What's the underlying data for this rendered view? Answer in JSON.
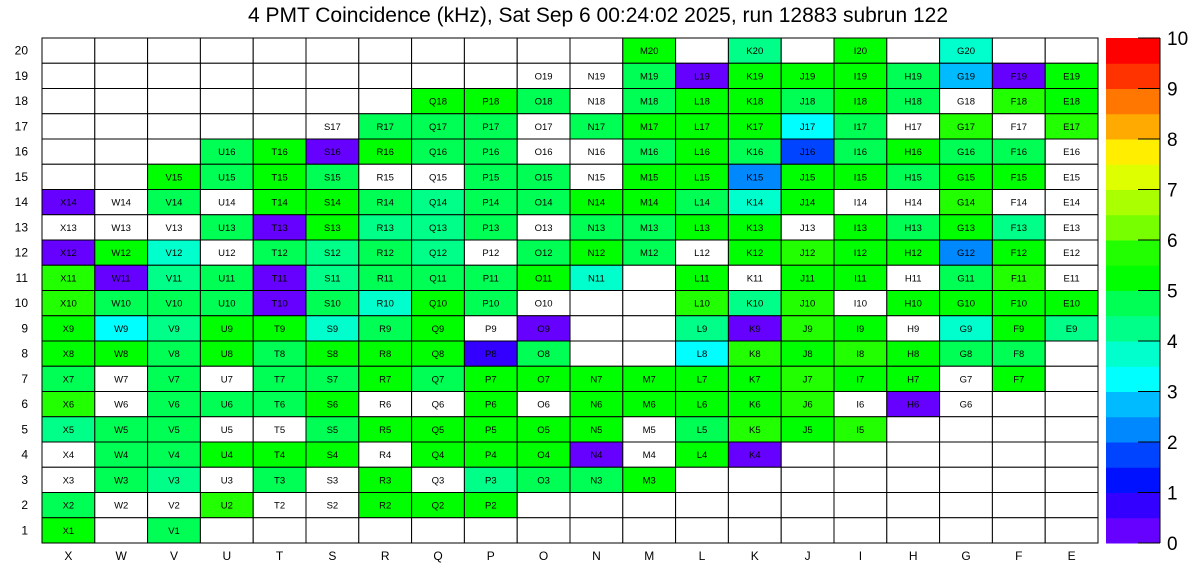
{
  "chart_data": {
    "type": "heatmap",
    "title": "4 PMT Coincidence (kHz), Sat Sep  6 00:24:02 2025, run 12883 subrun 122",
    "x": [
      "X",
      "W",
      "V",
      "U",
      "T",
      "S",
      "R",
      "Q",
      "P",
      "O",
      "N",
      "M",
      "L",
      "K",
      "J",
      "I",
      "H",
      "G",
      "F",
      "E"
    ],
    "y": [
      "20",
      "19",
      "18",
      "17",
      "16",
      "15",
      "14",
      "13",
      "12",
      "11",
      "10",
      "9",
      "8",
      "7",
      "6",
      "5",
      "4",
      "3",
      "2",
      "1"
    ],
    "zlim": [
      0,
      10
    ],
    "colorbar_ticks": [
      "0",
      "1",
      "2",
      "3",
      "4",
      "5",
      "6",
      "7",
      "8",
      "9",
      "10"
    ],
    "palette": [
      "#6600ff",
      "#3300ff",
      "#0011ff",
      "#0044ff",
      "#0088ff",
      "#00bbff",
      "#00ffff",
      "#00ffcc",
      "#00ff88",
      "#00ff55",
      "#00ff00",
      "#22ff00",
      "#77ff00",
      "#aaff00",
      "#ddff00",
      "#ffee00",
      "#ffaa00",
      "#ff7700",
      "#ff3300",
      "#ff0000"
    ],
    "z": [
      [
        null,
        null,
        null,
        null,
        null,
        null,
        null,
        null,
        null,
        null,
        null,
        5.3,
        null,
        4.3,
        null,
        5.3,
        null,
        3.8,
        null,
        null
      ],
      [
        null,
        null,
        null,
        null,
        null,
        null,
        null,
        null,
        null,
        0,
        0,
        4.8,
        0.3,
        5.3,
        5.3,
        5.3,
        4.8,
        2.8,
        0.3,
        5.3
      ],
      [
        null,
        null,
        null,
        null,
        null,
        null,
        null,
        5.3,
        5.3,
        4.8,
        0,
        4.8,
        5.3,
        5.3,
        4.8,
        5.3,
        4.8,
        0,
        5.8,
        5.3
      ],
      [
        null,
        null,
        null,
        null,
        null,
        0,
        4.8,
        4.8,
        4.8,
        0,
        4.8,
        5.3,
        5.3,
        5.3,
        3.3,
        4.8,
        0,
        5.8,
        0,
        5.8
      ],
      [
        null,
        null,
        null,
        4.8,
        5.3,
        0.3,
        5.3,
        4.8,
        4.8,
        0,
        0,
        4.8,
        5.3,
        4.8,
        1.8,
        4.8,
        5.3,
        4.8,
        4.8,
        0
      ],
      [
        null,
        null,
        5.3,
        4.8,
        5.3,
        4.8,
        0,
        0,
        4.8,
        4.8,
        0,
        5.3,
        5.3,
        2.3,
        5.3,
        5.3,
        4.8,
        5.3,
        5.3,
        0
      ],
      [
        0.3,
        0,
        4.8,
        0,
        5.3,
        5.3,
        4.8,
        4.3,
        4.8,
        4.8,
        5.3,
        5.3,
        4.8,
        3.8,
        5.3,
        0,
        0,
        5.8,
        0,
        0
      ],
      [
        0,
        0,
        0,
        4.8,
        0.3,
        5.3,
        4.3,
        4.3,
        4.8,
        0,
        4.8,
        4.8,
        5.3,
        5.3,
        0,
        5.3,
        4.8,
        5.3,
        4.3,
        0
      ],
      [
        0.3,
        5.3,
        3.8,
        0,
        4.8,
        4.3,
        4.8,
        4.3,
        0,
        4.8,
        5.3,
        4.8,
        0,
        5.3,
        5.8,
        5.3,
        5.3,
        2.3,
        5.3,
        0
      ],
      [
        5.8,
        0.3,
        4.3,
        4.8,
        0.3,
        4.3,
        4.8,
        4.8,
        4.8,
        5.3,
        3.8,
        null,
        5.3,
        0,
        5.3,
        5.3,
        0,
        4.8,
        5.8,
        0
      ],
      [
        5.8,
        4.8,
        4.8,
        4.8,
        0.3,
        4.8,
        3.8,
        5.3,
        4.8,
        0,
        null,
        null,
        5.8,
        4.3,
        5.8,
        0,
        5.3,
        5.3,
        5.3,
        5.3
      ],
      [
        5.3,
        3.3,
        4.3,
        5.3,
        5.3,
        3.8,
        4.8,
        5.3,
        0,
        0.3,
        null,
        null,
        4.3,
        0.3,
        5.8,
        5.3,
        0,
        3.8,
        5.3,
        4.3
      ],
      [
        5.3,
        5.3,
        4.8,
        5.3,
        4.8,
        5.3,
        5.3,
        5.3,
        0.8,
        4.8,
        null,
        null,
        3.3,
        5.8,
        5.3,
        5.8,
        5.3,
        4.8,
        4.8,
        null
      ],
      [
        4.8,
        0,
        4.8,
        0,
        4.8,
        4.8,
        5.3,
        4.8,
        5.3,
        5.3,
        5.3,
        5.3,
        5.3,
        5.3,
        5.8,
        5.3,
        5.3,
        0,
        5.3,
        null
      ],
      [
        5.8,
        0,
        4.8,
        4.8,
        4.8,
        5.3,
        0,
        0,
        5.3,
        0,
        5.3,
        5.3,
        5.3,
        5.3,
        5.8,
        0,
        0.3,
        0,
        null,
        null
      ],
      [
        4.3,
        4.8,
        4.8,
        0,
        0,
        4.8,
        5.3,
        5.3,
        5.3,
        5.3,
        5.3,
        0,
        4.8,
        5.8,
        5.3,
        5.8,
        null,
        null,
        null,
        null
      ],
      [
        0,
        4.8,
        4.8,
        5.3,
        5.3,
        5.3,
        0,
        5.3,
        5.3,
        5.3,
        0.3,
        0,
        5.3,
        0.3,
        null,
        null,
        null,
        null,
        null,
        null
      ],
      [
        0,
        4.8,
        4.3,
        0,
        4.8,
        0,
        5.3,
        0,
        4.3,
        4.8,
        4.8,
        5.3,
        null,
        null,
        null,
        null,
        null,
        null,
        null,
        null
      ],
      [
        4.8,
        0,
        0,
        5.8,
        0,
        0,
        5.3,
        5.3,
        5.3,
        null,
        null,
        null,
        null,
        null,
        null,
        null,
        null,
        null,
        null,
        null
      ],
      [
        5.3,
        null,
        4.8,
        null,
        null,
        null,
        null,
        null,
        null,
        null,
        null,
        null,
        null,
        null,
        null,
        null,
        null,
        null,
        null,
        null
      ]
    ]
  }
}
